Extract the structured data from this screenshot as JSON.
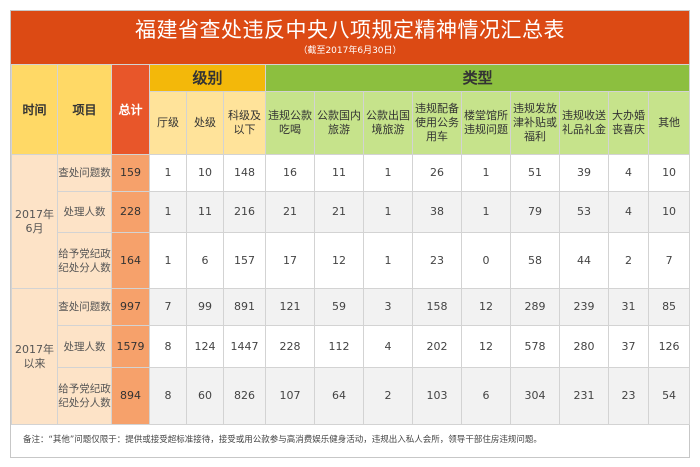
{
  "title": "福建省查处违反中央八项规定精神情况汇总表",
  "subtitle": "（截至2017年6月30日）",
  "headers": {
    "time": "时间",
    "item": "项目",
    "total": "总计",
    "level_group": "级别",
    "type_group": "类型",
    "levels": [
      "厅级",
      "处级",
      "科级及以下"
    ],
    "types": [
      "违规公款吃喝",
      "公款国内旅游",
      "公款出国境旅游",
      "违规配备使用公务用车",
      "楼堂馆所违规问题",
      "违规发放津补贴或福利",
      "违规收送礼品礼金",
      "大办婚丧喜庆",
      "其他"
    ]
  },
  "sections": [
    {
      "period": "2017年6月",
      "rows": [
        {
          "item": "查处问题数",
          "total": "159",
          "values": [
            "1",
            "10",
            "148",
            "16",
            "11",
            "1",
            "26",
            "1",
            "51",
            "39",
            "4",
            "10"
          ]
        },
        {
          "item": "处理人数",
          "total": "228",
          "values": [
            "1",
            "11",
            "216",
            "21",
            "21",
            "1",
            "38",
            "1",
            "79",
            "53",
            "4",
            "10"
          ]
        },
        {
          "item": "给予党纪政纪处分人数",
          "total": "164",
          "values": [
            "1",
            "6",
            "157",
            "17",
            "12",
            "1",
            "23",
            "0",
            "58",
            "44",
            "2",
            "7"
          ]
        }
      ]
    },
    {
      "period": "2017年以来",
      "rows": [
        {
          "item": "查处问题数",
          "total": "997",
          "values": [
            "7",
            "99",
            "891",
            "121",
            "59",
            "3",
            "158",
            "12",
            "289",
            "239",
            "31",
            "85"
          ]
        },
        {
          "item": "处理人数",
          "total": "1579",
          "values": [
            "8",
            "124",
            "1447",
            "228",
            "112",
            "4",
            "202",
            "12",
            "578",
            "280",
            "37",
            "126"
          ]
        },
        {
          "item": "给予党纪政纪处分人数",
          "total": "894",
          "values": [
            "8",
            "60",
            "826",
            "107",
            "64",
            "2",
            "103",
            "6",
            "304",
            "231",
            "23",
            "54"
          ]
        }
      ]
    }
  ],
  "note": "备注：“其他”问题仅限于：提供或接受超标准接待，接受或用公款参与高消费娱乐健身活动，违规出入私人会所，领导干部住房违规问题。"
}
